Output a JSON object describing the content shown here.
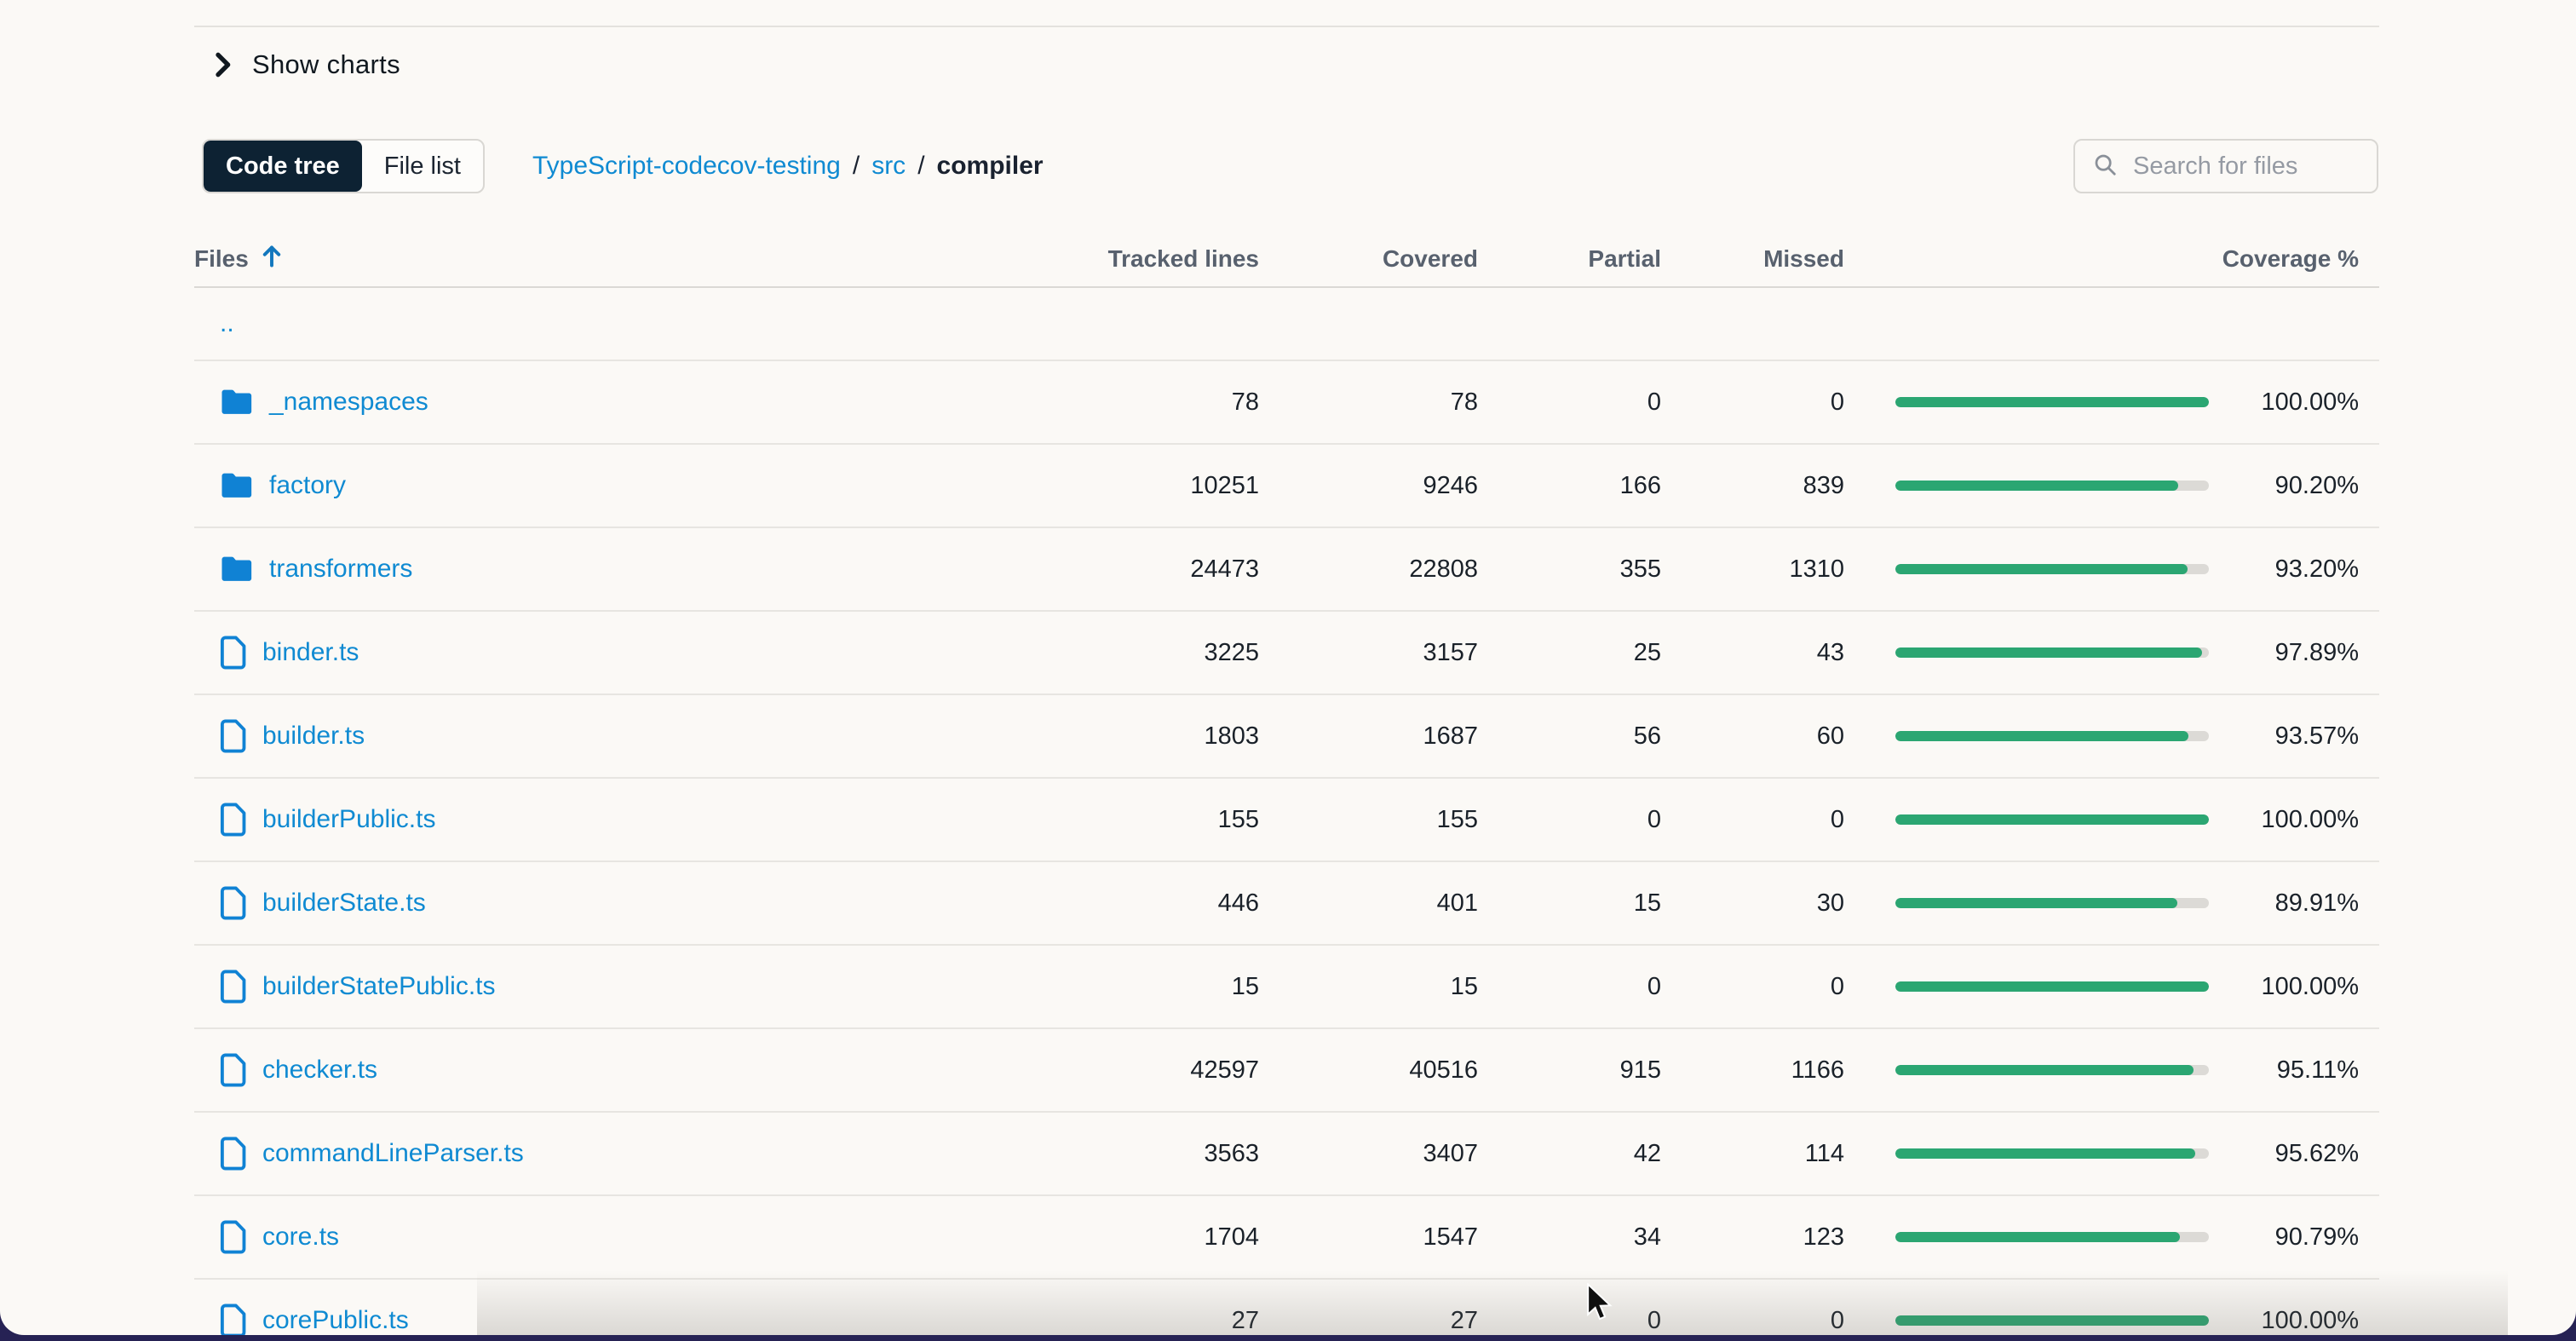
{
  "toggle": {
    "label": "Show charts"
  },
  "view_switcher": {
    "options": [
      {
        "label": "Code tree",
        "active": true
      },
      {
        "label": "File list",
        "active": false
      }
    ]
  },
  "breadcrumb": {
    "separator": "/",
    "segments": [
      {
        "label": "TypeScript-codecov-testing",
        "type": "link"
      },
      {
        "label": "src",
        "type": "link"
      },
      {
        "label": "compiler",
        "type": "current"
      }
    ]
  },
  "search": {
    "placeholder": "Search for files"
  },
  "table": {
    "columns": [
      "Files",
      "Tracked lines",
      "Covered",
      "Partial",
      "Missed",
      "Coverage %"
    ],
    "sort": {
      "column": "Files",
      "direction": "asc"
    },
    "parent_row": {
      "label": ".."
    },
    "rows": [
      {
        "name": "_namespaces",
        "kind": "folder",
        "tracked": "78",
        "covered": "78",
        "partial": "0",
        "missed": "0",
        "coverage": "100.00%",
        "pct": 100
      },
      {
        "name": "factory",
        "kind": "folder",
        "tracked": "10251",
        "covered": "9246",
        "partial": "166",
        "missed": "839",
        "coverage": "90.20%",
        "pct": 90.2
      },
      {
        "name": "transformers",
        "kind": "folder",
        "tracked": "24473",
        "covered": "22808",
        "partial": "355",
        "missed": "1310",
        "coverage": "93.20%",
        "pct": 93.2
      },
      {
        "name": "binder.ts",
        "kind": "file",
        "tracked": "3225",
        "covered": "3157",
        "partial": "25",
        "missed": "43",
        "coverage": "97.89%",
        "pct": 97.89
      },
      {
        "name": "builder.ts",
        "kind": "file",
        "tracked": "1803",
        "covered": "1687",
        "partial": "56",
        "missed": "60",
        "coverage": "93.57%",
        "pct": 93.57
      },
      {
        "name": "builderPublic.ts",
        "kind": "file",
        "tracked": "155",
        "covered": "155",
        "partial": "0",
        "missed": "0",
        "coverage": "100.00%",
        "pct": 100
      },
      {
        "name": "builderState.ts",
        "kind": "file",
        "tracked": "446",
        "covered": "401",
        "partial": "15",
        "missed": "30",
        "coverage": "89.91%",
        "pct": 89.91
      },
      {
        "name": "builderStatePublic.ts",
        "kind": "file",
        "tracked": "15",
        "covered": "15",
        "partial": "0",
        "missed": "0",
        "coverage": "100.00%",
        "pct": 100
      },
      {
        "name": "checker.ts",
        "kind": "file",
        "tracked": "42597",
        "covered": "40516",
        "partial": "915",
        "missed": "1166",
        "coverage": "95.11%",
        "pct": 95.11
      },
      {
        "name": "commandLineParser.ts",
        "kind": "file",
        "tracked": "3563",
        "covered": "3407",
        "partial": "42",
        "missed": "114",
        "coverage": "95.62%",
        "pct": 95.62
      },
      {
        "name": "core.ts",
        "kind": "file",
        "tracked": "1704",
        "covered": "1547",
        "partial": "34",
        "missed": "123",
        "coverage": "90.79%",
        "pct": 90.79
      },
      {
        "name": "corePublic.ts",
        "kind": "file",
        "tracked": "27",
        "covered": "27",
        "partial": "0",
        "missed": "0",
        "coverage": "100.00%",
        "pct": 100
      }
    ]
  },
  "colors": {
    "link_blue": "#0f8ad2",
    "icon_blue": "#1082d4",
    "bar_green": "#2ba672",
    "bar_track": "#dcdad6",
    "tab_active_bg": "#0d2233",
    "page_bg": "#fbf9f6",
    "desktop_bg": "#262254"
  }
}
